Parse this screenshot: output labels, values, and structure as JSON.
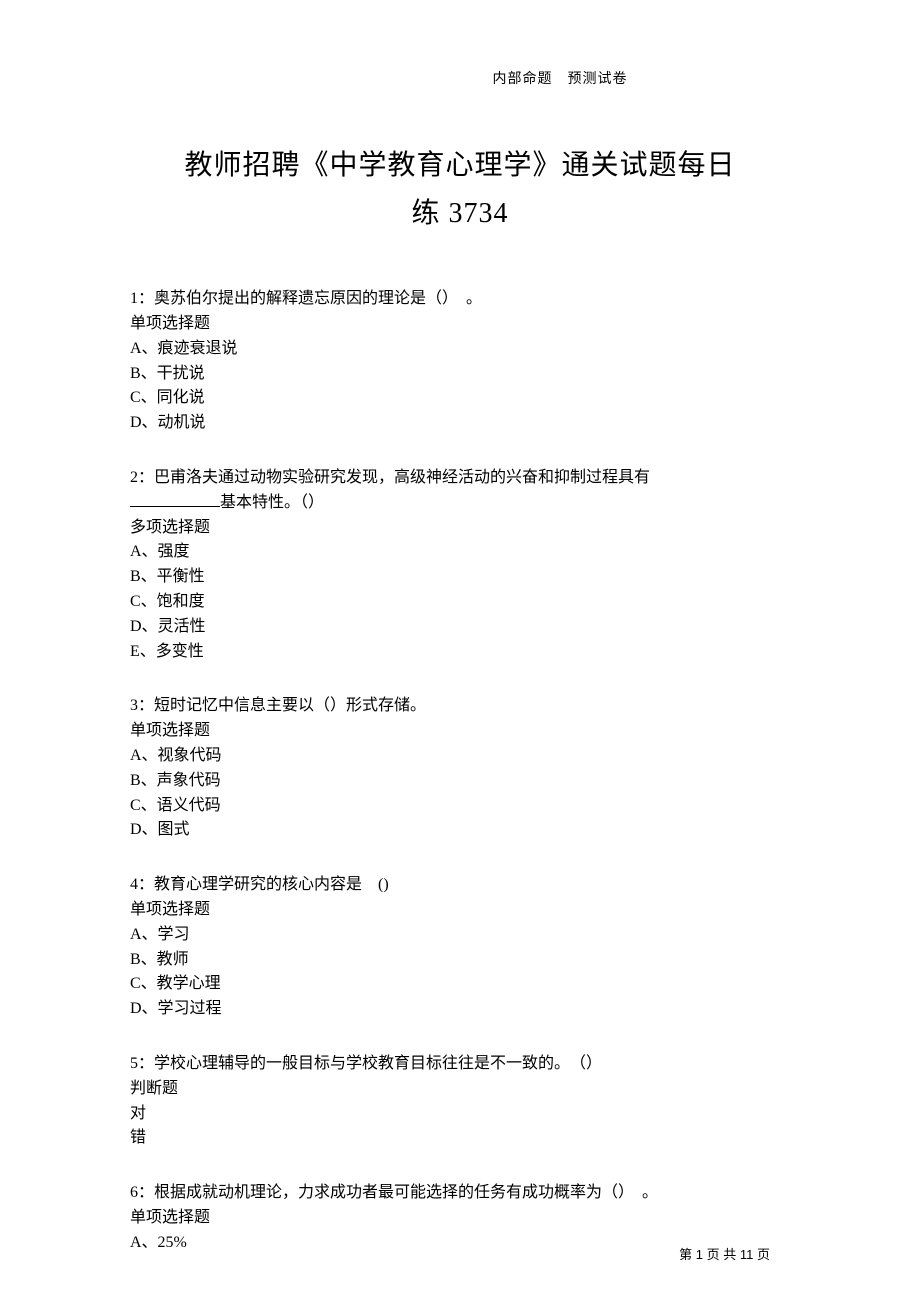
{
  "header_label": "内部命题　预测试卷",
  "title_line1": "教师招聘《中学教育心理学》通关试题每日",
  "title_line2": "练 3734",
  "questions": [
    {
      "num": "1",
      "stem": "：奥苏伯尔提出的解释遗忘原因的理论是（）　。",
      "type": "单项选择题",
      "opts": [
        "A、痕迹衰退说",
        "B、干扰说",
        "C、同化说",
        "D、动机说"
      ]
    },
    {
      "num": "2",
      "stem_a": "：巴甫洛夫通过动物实验研究发现，高级神经活动的兴奋和抑制过程具有",
      "stem_b": "基本特性。（）",
      "has_blank": true,
      "type": "多项选择题",
      "opts": [
        "A、强度",
        "B、平衡性",
        "C、饱和度",
        "D、灵活性",
        "E、多变性"
      ]
    },
    {
      "num": "3",
      "stem": "：短时记忆中信息主要以（）形式存储。",
      "type": "单项选择题",
      "opts": [
        "A、视象代码",
        "B、声象代码",
        "C、语义代码",
        "D、图式"
      ]
    },
    {
      "num": "4",
      "stem": "：教育心理学研究的核心内容是　()",
      "type": "单项选择题",
      "opts": [
        "A、学习",
        "B、教师",
        "C、教学心理",
        "D、学习过程"
      ]
    },
    {
      "num": "5",
      "stem": "：学校心理辅导的一般目标与学校教育目标往往是不一致的。　（）",
      "type": "判断题",
      "opts": [
        "对",
        "错"
      ]
    },
    {
      "num": "6",
      "stem": "：根据成就动机理论，力求成功者最可能选择的任务有成功概率为（）　。",
      "type": "单项选择题",
      "opts": [
        "A、25%"
      ]
    }
  ],
  "footer": {
    "prefix": "第 ",
    "page_current": "1",
    "mid": " 页 共 ",
    "page_total": "11",
    "suffix": " 页"
  }
}
